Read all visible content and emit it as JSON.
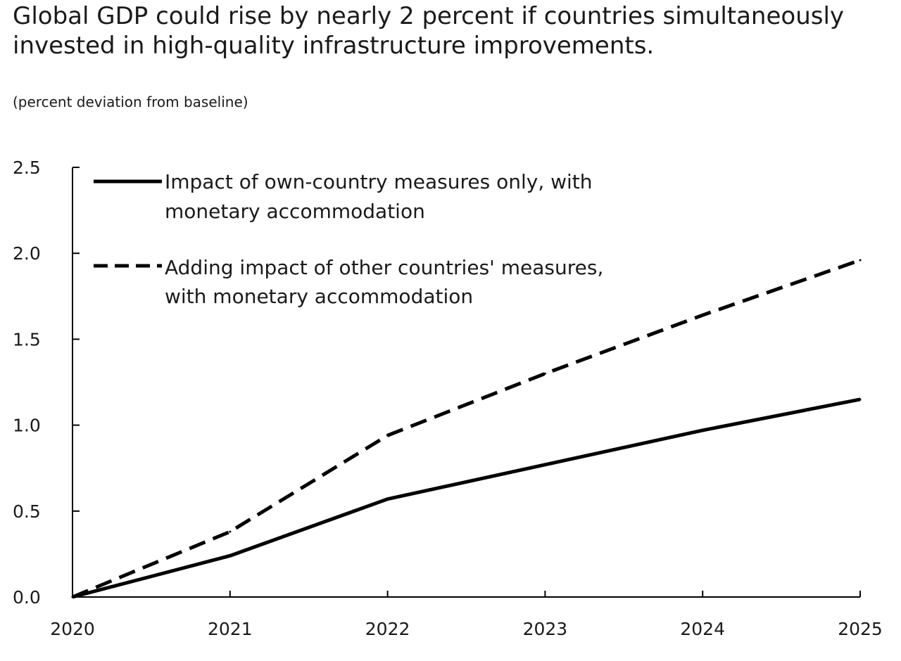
{
  "chart_data": {
    "type": "line",
    "title": "Global GDP could rise by nearly 2 percent if countries simultaneously invested in high-quality infrastructure improvements.",
    "subtitle": "(percent deviation from baseline)",
    "xlabel": "",
    "ylabel": "",
    "x": [
      "2020",
      "2021",
      "2022",
      "2023",
      "2024",
      "2025"
    ],
    "ylim": [
      0,
      2.5
    ],
    "yticks": [
      "0.0",
      "0.5",
      "1.0",
      "1.5",
      "2.0",
      "2.5"
    ],
    "grid": false,
    "legend_position": "top-left",
    "series": [
      {
        "name": "Impact of own-country measures only, with monetary accommodation",
        "label_lines": [
          "Impact of own-country measures only, with",
          "monetary accommodation"
        ],
        "style": "solid",
        "color": "#000000",
        "values": [
          0.0,
          0.24,
          0.57,
          0.77,
          0.97,
          1.15
        ]
      },
      {
        "name": "Adding impact of other countries' measures, with monetary accommodation",
        "label_lines": [
          "Adding impact of other countries' measures,",
          "with monetary accommodation"
        ],
        "style": "dashed",
        "color": "#000000",
        "values": [
          0.0,
          0.38,
          0.94,
          1.3,
          1.64,
          1.96
        ]
      }
    ]
  }
}
